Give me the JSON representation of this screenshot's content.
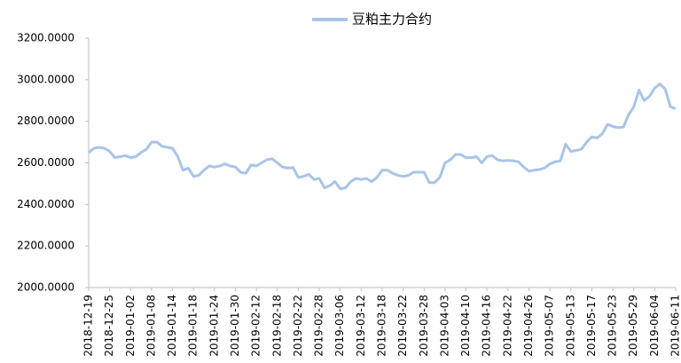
{
  "chart_data": {
    "type": "line",
    "categories": [
      "2018-12-19",
      null,
      null,
      null,
      "2018-12-25",
      null,
      null,
      null,
      "2019-01-02",
      null,
      null,
      null,
      "2019-01-08",
      null,
      null,
      null,
      "2019-01-14",
      null,
      null,
      null,
      "2019-01-18",
      null,
      null,
      null,
      "2019-01-24",
      null,
      null,
      null,
      "2019-01-30",
      null,
      null,
      null,
      "2019-02-12",
      null,
      null,
      null,
      "2019-02-18",
      null,
      null,
      null,
      "2019-02-22",
      null,
      null,
      null,
      "2019-02-28",
      null,
      null,
      null,
      "2019-03-06",
      null,
      null,
      null,
      "2019-03-12",
      null,
      null,
      null,
      "2019-03-18",
      null,
      null,
      null,
      "2019-03-22",
      null,
      null,
      null,
      "2019-03-28",
      null,
      null,
      null,
      "2019-04-03",
      null,
      null,
      null,
      "2019-04-10",
      null,
      null,
      null,
      "2019-04-16",
      null,
      null,
      null,
      "2019-04-22",
      null,
      null,
      null,
      "2019-04-26",
      null,
      null,
      null,
      "2019-05-07",
      null,
      null,
      null,
      "2019-05-13",
      null,
      null,
      null,
      "2019-05-17",
      null,
      null,
      null,
      "2019-05-23",
      null,
      null,
      null,
      "2019-05-29",
      null,
      null,
      null,
      "2019-06-04",
      null,
      null,
      null,
      "2019-06-11"
    ],
    "series": [
      {
        "name": "豆粕主力合约",
        "color": "#a9c4e8",
        "values": [
          2650,
          2670,
          2675,
          2670,
          2655,
          2625,
          2630,
          2635,
          2625,
          2630,
          2650,
          2665,
          2700,
          2700,
          2680,
          2675,
          2670,
          2630,
          2565,
          2575,
          2535,
          2540,
          2565,
          2585,
          2580,
          2585,
          2595,
          2585,
          2580,
          2555,
          2550,
          2590,
          2585,
          2600,
          2615,
          2620,
          2600,
          2580,
          2575,
          2578,
          2530,
          2535,
          2545,
          2520,
          2525,
          2480,
          2490,
          2510,
          2475,
          2480,
          2510,
          2525,
          2520,
          2525,
          2510,
          2530,
          2565,
          2565,
          2550,
          2540,
          2535,
          2540,
          2555,
          2555,
          2555,
          2505,
          2505,
          2530,
          2600,
          2615,
          2640,
          2640,
          2625,
          2625,
          2630,
          2600,
          2630,
          2635,
          2615,
          2610,
          2612,
          2610,
          2605,
          2580,
          2560,
          2565,
          2568,
          2575,
          2595,
          2605,
          2610,
          2690,
          2655,
          2660,
          2665,
          2700,
          2725,
          2720,
          2740,
          2785,
          2775,
          2770,
          2772,
          2830,
          2870,
          2950,
          2900,
          2920,
          2960,
          2980,
          2955,
          2870,
          2860
        ]
      }
    ],
    "ylim": [
      2000,
      3200
    ],
    "yticks": [
      {
        "value": 2000,
        "label": "2000.0000"
      },
      {
        "value": 2200,
        "label": "2200.0000"
      },
      {
        "value": 2400,
        "label": "2400.0000"
      },
      {
        "value": 2600,
        "label": "2600.0000"
      },
      {
        "value": 2800,
        "label": "2800.0000"
      },
      {
        "value": 3000,
        "label": "3000.0000"
      },
      {
        "value": 3200,
        "label": "3200.0000"
      }
    ],
    "grid": false
  }
}
